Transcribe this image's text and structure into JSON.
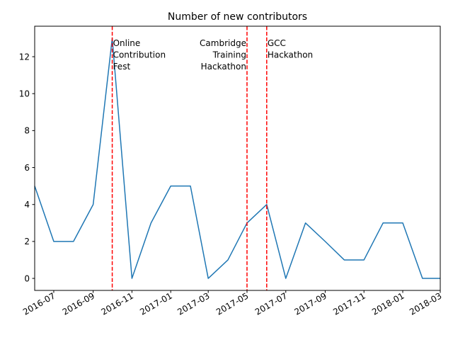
{
  "chart_data": {
    "type": "line",
    "title": "Number of new contributors",
    "xlabel": "",
    "ylabel": "",
    "x_axis_type": "date",
    "xlim": [
      "2016-06-01",
      "2018-03-01"
    ],
    "ylim": [
      -0.65,
      13.65
    ],
    "grid": false,
    "series": [
      {
        "color": "#1f77b4",
        "points": [
          {
            "x": "2016-06-01",
            "y": 5
          },
          {
            "x": "2016-07-01",
            "y": 2
          },
          {
            "x": "2016-08-01",
            "y": 2
          },
          {
            "x": "2016-09-01",
            "y": 4
          },
          {
            "x": "2016-10-01",
            "y": 13
          },
          {
            "x": "2016-11-01",
            "y": 0
          },
          {
            "x": "2016-12-01",
            "y": 3
          },
          {
            "x": "2017-01-01",
            "y": 5
          },
          {
            "x": "2017-02-01",
            "y": 5
          },
          {
            "x": "2017-03-01",
            "y": 0
          },
          {
            "x": "2017-04-01",
            "y": 1
          },
          {
            "x": "2017-05-01",
            "y": 3
          },
          {
            "x": "2017-06-01",
            "y": 4
          },
          {
            "x": "2017-07-01",
            "y": 0
          },
          {
            "x": "2017-08-01",
            "y": 3
          },
          {
            "x": "2017-09-01",
            "y": 2
          },
          {
            "x": "2017-10-01",
            "y": 1
          },
          {
            "x": "2017-11-01",
            "y": 1
          },
          {
            "x": "2017-12-01",
            "y": 3
          },
          {
            "x": "2018-01-01",
            "y": 3
          },
          {
            "x": "2018-02-01",
            "y": 0
          },
          {
            "x": "2018-03-01",
            "y": 0
          }
        ]
      }
    ],
    "x_ticks": [
      {
        "date": "2016-07-01",
        "label": "2016-07"
      },
      {
        "date": "2016-09-01",
        "label": "2016-09"
      },
      {
        "date": "2016-11-01",
        "label": "2016-11"
      },
      {
        "date": "2017-01-01",
        "label": "2017-01"
      },
      {
        "date": "2017-03-01",
        "label": "2017-03"
      },
      {
        "date": "2017-05-01",
        "label": "2017-05"
      },
      {
        "date": "2017-07-01",
        "label": "2017-07"
      },
      {
        "date": "2017-09-01",
        "label": "2017-09"
      },
      {
        "date": "2017-11-01",
        "label": "2017-11"
      },
      {
        "date": "2018-01-01",
        "label": "2018-01"
      },
      {
        "date": "2018-03-01",
        "label": "2018-03"
      }
    ],
    "y_ticks": [
      0,
      2,
      4,
      6,
      8,
      10,
      12
    ],
    "events": [
      {
        "date": "2016-10-01",
        "lines": [
          "Online",
          "Contribution",
          "Fest"
        ],
        "align": "left",
        "color": "#ff0000",
        "style": "dashed"
      },
      {
        "date": "2017-05-01",
        "lines": [
          "Cambridge",
          "Training",
          "Hackathon"
        ],
        "align": "right",
        "color": "#ff0000",
        "style": "dashed"
      },
      {
        "date": "2017-06-01",
        "lines": [
          "GCC",
          "Hackathon"
        ],
        "align": "left",
        "color": "#ff0000",
        "style": "dashed"
      }
    ]
  }
}
